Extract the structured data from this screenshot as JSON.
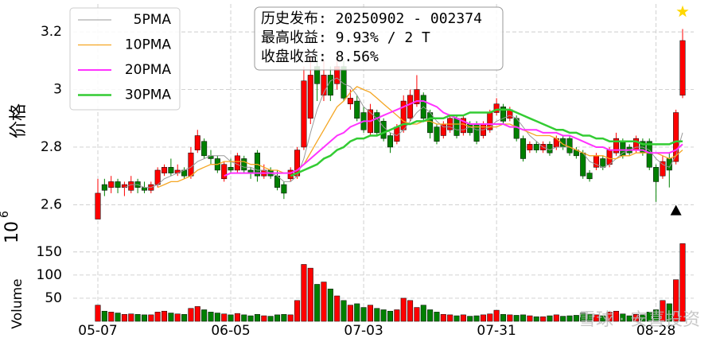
{
  "chart_data": {
    "type": "candlestick",
    "info_lines": [
      "历史发布: 20250902 - 002374",
      "最高收益: 9.93% / 2 T",
      "收盘收益: 8.56%"
    ],
    "ylabel": "价格",
    "volume_label": "Volume",
    "volume_offset": {
      "base": "10",
      "exponent": "6"
    },
    "watermark": "雪球 · 安喜投资",
    "categories": [
      "05-07",
      null,
      null,
      null,
      null,
      null,
      null,
      null,
      null,
      null,
      null,
      null,
      null,
      null,
      null,
      null,
      null,
      null,
      null,
      null,
      "06-05",
      null,
      null,
      null,
      null,
      null,
      null,
      null,
      null,
      null,
      null,
      null,
      null,
      null,
      null,
      null,
      null,
      null,
      null,
      null,
      "07-03",
      null,
      null,
      null,
      null,
      null,
      null,
      null,
      null,
      null,
      null,
      null,
      null,
      null,
      null,
      null,
      null,
      null,
      null,
      null,
      "07-31",
      null,
      null,
      null,
      null,
      null,
      null,
      null,
      null,
      null,
      null,
      null,
      null,
      null,
      null,
      null,
      null,
      null,
      null,
      null,
      null,
      null,
      null,
      null,
      "08-28",
      null,
      null,
      null,
      null
    ],
    "open": [
      2.55,
      2.67,
      2.66,
      2.68,
      2.66,
      2.65,
      2.68,
      2.66,
      2.65,
      2.67,
      2.71,
      2.73,
      2.71,
      2.72,
      2.7,
      2.79,
      2.82,
      2.77,
      2.76,
      2.69,
      2.73,
      2.72,
      2.76,
      2.72,
      2.78,
      2.7,
      2.72,
      2.7,
      2.67,
      2.69,
      2.7,
      2.8,
      2.9,
      3.08,
      2.98,
      3.05,
      3.02,
      3.08,
      2.95,
      2.96,
      2.92,
      2.85,
      2.92,
      2.89,
      2.84,
      2.82,
      2.86,
      2.9,
      2.95,
      2.98,
      2.92,
      2.87,
      2.84,
      2.86,
      2.9,
      2.85,
      2.88,
      2.88,
      2.84,
      2.86,
      2.92,
      2.94,
      2.9,
      2.9,
      2.83,
      2.79,
      2.81,
      2.79,
      2.81,
      2.8,
      2.83,
      2.83,
      2.79,
      2.78,
      2.71,
      2.73,
      2.76,
      2.74,
      2.78,
      2.82,
      2.8,
      2.79,
      2.82,
      2.82,
      2.73,
      2.7,
      2.76,
      2.75,
      2.98
    ],
    "high": [
      2.69,
      2.69,
      2.7,
      2.69,
      2.68,
      2.7,
      2.69,
      2.68,
      2.68,
      2.73,
      2.74,
      2.76,
      2.74,
      2.73,
      2.8,
      2.86,
      2.83,
      2.79,
      2.77,
      2.75,
      2.76,
      2.78,
      2.77,
      2.73,
      2.79,
      2.74,
      2.73,
      2.72,
      2.68,
      2.73,
      2.8,
      3.08,
      3.12,
      3.12,
      3.1,
      3.08,
      3.1,
      3.1,
      3.0,
      2.98,
      2.94,
      2.95,
      2.93,
      2.9,
      2.85,
      2.88,
      2.98,
      3.0,
      3.05,
      2.99,
      2.93,
      2.88,
      2.89,
      2.91,
      2.91,
      2.91,
      2.89,
      2.89,
      2.89,
      2.93,
      2.97,
      2.95,
      2.94,
      2.91,
      2.84,
      2.82,
      2.82,
      2.82,
      2.82,
      2.84,
      2.84,
      2.84,
      2.8,
      2.79,
      2.72,
      2.78,
      2.77,
      2.8,
      2.85,
      2.83,
      2.81,
      2.84,
      2.83,
      2.83,
      2.74,
      2.77,
      2.78,
      2.93,
      3.21
    ],
    "low": [
      2.55,
      2.63,
      2.64,
      2.64,
      2.63,
      2.64,
      2.64,
      2.64,
      2.64,
      2.66,
      2.7,
      2.7,
      2.7,
      2.69,
      2.69,
      2.78,
      2.76,
      2.74,
      2.71,
      2.68,
      2.71,
      2.71,
      2.71,
      2.69,
      2.68,
      2.69,
      2.69,
      2.65,
      2.62,
      2.68,
      2.69,
      2.79,
      2.88,
      2.96,
      2.96,
      2.96,
      3.0,
      2.96,
      2.93,
      2.89,
      2.85,
      2.84,
      2.84,
      2.82,
      2.78,
      2.81,
      2.85,
      2.89,
      2.94,
      2.89,
      2.83,
      2.81,
      2.83,
      2.85,
      2.83,
      2.84,
      2.84,
      2.81,
      2.83,
      2.85,
      2.91,
      2.88,
      2.89,
      2.82,
      2.75,
      2.78,
      2.78,
      2.78,
      2.77,
      2.79,
      2.79,
      2.77,
      2.76,
      2.69,
      2.68,
      2.72,
      2.72,
      2.73,
      2.77,
      2.76,
      2.77,
      2.78,
      2.77,
      2.72,
      2.61,
      2.69,
      2.66,
      2.74,
      2.97
    ],
    "close": [
      2.64,
      2.65,
      2.68,
      2.66,
      2.67,
      2.68,
      2.66,
      2.65,
      2.67,
      2.72,
      2.73,
      2.71,
      2.72,
      2.7,
      2.78,
      2.84,
      2.77,
      2.76,
      2.72,
      2.74,
      2.72,
      2.77,
      2.72,
      2.71,
      2.7,
      2.72,
      2.7,
      2.66,
      2.64,
      2.72,
      2.79,
      3.03,
      3.05,
      3.02,
      3.05,
      2.98,
      3.08,
      2.97,
      2.97,
      2.9,
      2.86,
      2.93,
      2.85,
      2.83,
      2.8,
      2.87,
      2.96,
      2.98,
      3.0,
      2.9,
      2.85,
      2.82,
      2.88,
      2.9,
      2.84,
      2.9,
      2.85,
      2.82,
      2.88,
      2.92,
      2.95,
      2.89,
      2.93,
      2.83,
      2.76,
      2.81,
      2.79,
      2.81,
      2.78,
      2.83,
      2.8,
      2.78,
      2.77,
      2.7,
      2.69,
      2.77,
      2.73,
      2.79,
      2.83,
      2.77,
      2.78,
      2.83,
      2.78,
      2.73,
      2.68,
      2.75,
      2.72,
      2.92,
      3.17
    ],
    "volume": [
      35,
      22,
      20,
      18,
      15,
      16,
      15,
      14,
      14,
      20,
      22,
      18,
      16,
      15,
      28,
      32,
      25,
      20,
      18,
      16,
      14,
      17,
      14,
      12,
      15,
      12,
      11,
      14,
      15,
      14,
      45,
      123,
      115,
      80,
      85,
      70,
      55,
      45,
      35,
      38,
      30,
      35,
      28,
      25,
      22,
      25,
      50,
      45,
      30,
      35,
      25,
      20,
      15,
      14,
      12,
      14,
      11,
      12,
      14,
      16,
      24,
      15,
      14,
      13,
      14,
      12,
      10,
      10,
      12,
      14,
      11,
      12,
      13,
      18,
      15,
      14,
      12,
      20,
      22,
      16,
      12,
      15,
      14,
      20,
      25,
      45,
      38,
      90,
      168
    ],
    "up_color": "#ff0000",
    "down_color": "#008000",
    "series": [
      {
        "name": "5PMA",
        "color": "#999999",
        "width": 1,
        "values": [
          null,
          null,
          null,
          null,
          2.66,
          2.67,
          2.67,
          2.66,
          2.66,
          2.67,
          2.69,
          2.7,
          2.71,
          2.72,
          2.73,
          2.75,
          2.76,
          2.77,
          2.77,
          2.77,
          2.75,
          2.74,
          2.73,
          2.73,
          2.72,
          2.72,
          2.71,
          2.7,
          2.68,
          2.68,
          2.7,
          2.76,
          2.85,
          2.93,
          2.99,
          3.03,
          3.04,
          3.02,
          3.01,
          2.98,
          2.94,
          2.92,
          2.9,
          2.87,
          2.85,
          2.84,
          2.86,
          2.89,
          2.92,
          2.94,
          2.92,
          2.89,
          2.87,
          2.87,
          2.86,
          2.86,
          2.87,
          2.86,
          2.86,
          2.87,
          2.89,
          2.9,
          2.91,
          2.9,
          2.87,
          2.84,
          2.82,
          2.8,
          2.79,
          2.8,
          2.8,
          2.8,
          2.79,
          2.78,
          2.75,
          2.74,
          2.73,
          2.74,
          2.76,
          2.78,
          2.79,
          2.8,
          2.8,
          2.79,
          2.76,
          2.74,
          2.73,
          2.77,
          2.85
        ]
      },
      {
        "name": "10PMA",
        "color": "#f5a623",
        "width": 1.3,
        "values": [
          null,
          null,
          null,
          null,
          null,
          null,
          null,
          null,
          null,
          2.66,
          2.67,
          2.68,
          2.68,
          2.69,
          2.7,
          2.72,
          2.73,
          2.74,
          2.74,
          2.75,
          2.75,
          2.75,
          2.75,
          2.74,
          2.74,
          2.73,
          2.72,
          2.72,
          2.71,
          2.71,
          2.72,
          2.74,
          2.78,
          2.82,
          2.86,
          2.9,
          2.94,
          2.96,
          2.99,
          3.01,
          3.0,
          2.99,
          2.97,
          2.95,
          2.93,
          2.91,
          2.89,
          2.88,
          2.88,
          2.89,
          2.89,
          2.88,
          2.88,
          2.88,
          2.88,
          2.88,
          2.87,
          2.87,
          2.87,
          2.87,
          2.87,
          2.88,
          2.88,
          2.87,
          2.86,
          2.85,
          2.84,
          2.84,
          2.84,
          2.83,
          2.81,
          2.8,
          2.79,
          2.78,
          2.77,
          2.77,
          2.77,
          2.76,
          2.76,
          2.77,
          2.77,
          2.78,
          2.78,
          2.78,
          2.78,
          2.77,
          2.76,
          2.77,
          2.79
        ]
      },
      {
        "name": "20PMA",
        "color": "#ff33ff",
        "width": 2,
        "values": [
          null,
          null,
          null,
          null,
          null,
          null,
          null,
          null,
          null,
          null,
          null,
          null,
          null,
          null,
          null,
          null,
          null,
          null,
          null,
          2.7,
          2.71,
          2.71,
          2.71,
          2.71,
          2.71,
          2.71,
          2.71,
          2.71,
          2.71,
          2.71,
          2.72,
          2.74,
          2.76,
          2.78,
          2.8,
          2.82,
          2.84,
          2.85,
          2.87,
          2.88,
          2.89,
          2.89,
          2.9,
          2.91,
          2.92,
          2.93,
          2.94,
          2.95,
          2.96,
          2.96,
          2.95,
          2.94,
          2.92,
          2.91,
          2.9,
          2.89,
          2.88,
          2.88,
          2.88,
          2.88,
          2.88,
          2.88,
          2.87,
          2.87,
          2.86,
          2.86,
          2.86,
          2.85,
          2.85,
          2.85,
          2.84,
          2.84,
          2.83,
          2.82,
          2.81,
          2.8,
          2.8,
          2.79,
          2.79,
          2.79,
          2.79,
          2.79,
          2.79,
          2.78,
          2.78,
          2.78,
          2.78,
          2.79,
          2.81
        ]
      },
      {
        "name": "30PMA",
        "color": "#33cc33",
        "width": 2.5,
        "values": [
          null,
          null,
          null,
          null,
          null,
          null,
          null,
          null,
          null,
          null,
          null,
          null,
          null,
          null,
          null,
          null,
          null,
          null,
          null,
          null,
          null,
          null,
          null,
          null,
          null,
          null,
          null,
          null,
          null,
          2.7,
          2.71,
          2.72,
          2.73,
          2.74,
          2.76,
          2.77,
          2.79,
          2.8,
          2.82,
          2.83,
          2.83,
          2.84,
          2.84,
          2.85,
          2.86,
          2.87,
          2.88,
          2.88,
          2.89,
          2.89,
          2.9,
          2.9,
          2.9,
          2.91,
          2.91,
          2.91,
          2.92,
          2.92,
          2.92,
          2.92,
          2.93,
          2.93,
          2.93,
          2.92,
          2.91,
          2.9,
          2.89,
          2.88,
          2.87,
          2.86,
          2.86,
          2.85,
          2.85,
          2.84,
          2.84,
          2.83,
          2.83,
          2.82,
          2.82,
          2.82,
          2.82,
          2.82,
          2.81,
          2.81,
          2.81,
          2.81,
          2.81,
          2.82,
          2.82
        ]
      }
    ],
    "star": {
      "color": "#ffd700",
      "values": [
        null,
        null,
        null,
        null,
        null,
        null,
        null,
        null,
        null,
        null,
        null,
        null,
        null,
        null,
        null,
        null,
        null,
        null,
        null,
        null,
        null,
        null,
        null,
        null,
        null,
        null,
        null,
        null,
        null,
        null,
        null,
        null,
        null,
        null,
        null,
        null,
        null,
        null,
        null,
        null,
        null,
        null,
        null,
        null,
        null,
        null,
        null,
        null,
        null,
        null,
        null,
        null,
        null,
        null,
        null,
        null,
        null,
        null,
        null,
        null,
        null,
        null,
        null,
        null,
        null,
        null,
        null,
        null,
        null,
        null,
        null,
        null,
        null,
        null,
        null,
        null,
        null,
        null,
        null,
        null,
        null,
        null,
        null,
        null,
        null,
        null,
        null,
        null,
        3.27
      ]
    },
    "triangle": {
      "color": "#000000",
      "values": [
        null,
        null,
        null,
        null,
        null,
        null,
        null,
        null,
        null,
        null,
        null,
        null,
        null,
        null,
        null,
        null,
        null,
        null,
        null,
        null,
        null,
        null,
        null,
        null,
        null,
        null,
        null,
        null,
        null,
        null,
        null,
        null,
        null,
        null,
        null,
        null,
        null,
        null,
        null,
        null,
        null,
        null,
        null,
        null,
        null,
        null,
        null,
        null,
        null,
        null,
        null,
        null,
        null,
        null,
        null,
        null,
        null,
        null,
        null,
        null,
        null,
        null,
        null,
        null,
        null,
        null,
        null,
        null,
        null,
        null,
        null,
        null,
        null,
        null,
        null,
        null,
        null,
        null,
        null,
        null,
        null,
        null,
        null,
        null,
        null,
        null,
        null,
        2.58,
        null
      ]
    },
    "ylim": [
      2.51,
      3.297
    ],
    "yticks": [
      2.6,
      2.8,
      3.0,
      3.2
    ],
    "volume_ylim": [
      0,
      196
    ],
    "volume_yticks": [
      50,
      100,
      150
    ],
    "grid": true
  }
}
